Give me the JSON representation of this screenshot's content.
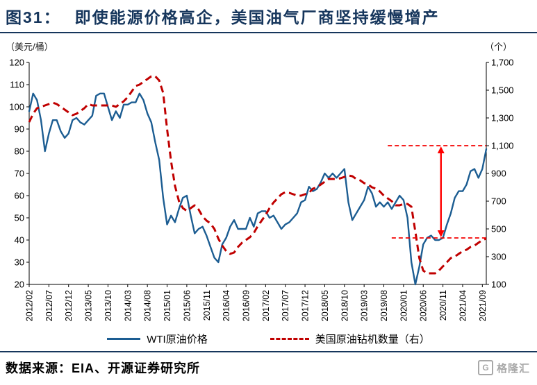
{
  "title": {
    "tag": "图31：",
    "text": "即使能源价格高企，美国油气厂商坚持缓慢增产"
  },
  "axes": {
    "left_unit": "（美元/桶）",
    "right_unit": "（个）"
  },
  "legend": [
    {
      "label": "WTI原油价格",
      "style": "solid",
      "color": "#1C5D92"
    },
    {
      "label": "美国原油钻机数量（右）",
      "style": "dashed",
      "color": "#C00000"
    }
  ],
  "source": {
    "label": "数据来源：EIA、开源证券研究所"
  },
  "watermark": {
    "icon": "G",
    "text": "格隆汇"
  },
  "chart_data": {
    "type": "line",
    "title": "即使能源价格高企，美国油气厂商坚持缓慢增产",
    "x_start": "2012/02",
    "x_frequency": "monthly",
    "x_domain_months": 116,
    "x_tick_step_months": 5,
    "x_tick_labels": [
      "2012/02",
      "2012/07",
      "2012/12",
      "2013/05",
      "2013/10",
      "2014/03",
      "2014/08",
      "2015/01",
      "2015/06",
      "2015/11",
      "2016/04",
      "2016/09",
      "2017/02",
      "2017/07",
      "2017/12",
      "2018/05",
      "2018/10",
      "2019/03",
      "2019/08",
      "2020/01",
      "2020/06",
      "2020/11",
      "2021/04",
      "2021/09"
    ],
    "left_axis": {
      "unit": "美元/桶",
      "min": 20,
      "max": 120,
      "ticks": [
        20,
        30,
        40,
        50,
        60,
        70,
        80,
        90,
        100,
        110,
        120
      ]
    },
    "right_axis": {
      "unit": "个",
      "min": 100,
      "max": 1700,
      "ticks": [
        100,
        300,
        500,
        700,
        900,
        1100,
        1300,
        1500,
        1700
      ],
      "tick_labels": [
        "100",
        "300",
        "500",
        "700",
        "900",
        "1,100",
        "1,300",
        "1,500",
        "1,700"
      ]
    },
    "series": [
      {
        "name": "WTI原油价格",
        "axis": "left",
        "color": "#1C5D92",
        "style": "solid",
        "monthly_values": [
          98,
          106,
          103,
          94,
          80,
          88,
          94,
          94,
          89,
          86,
          88,
          94,
          95,
          93,
          92,
          94,
          96,
          105,
          106,
          106,
          100,
          94,
          98,
          95,
          101,
          101,
          102,
          102,
          106,
          103,
          97,
          93,
          84,
          76,
          59,
          47,
          51,
          48,
          54,
          59,
          60,
          51,
          43,
          45,
          46,
          42,
          37,
          32,
          30,
          38,
          41,
          46,
          49,
          45,
          45,
          45,
          50,
          46,
          52,
          53,
          53,
          50,
          51,
          48,
          45,
          47,
          48,
          50,
          52,
          57,
          58,
          64,
          62,
          63,
          66,
          70,
          68,
          70,
          68,
          70,
          72,
          57,
          49,
          52,
          55,
          58,
          64,
          61,
          55,
          57,
          55,
          57,
          54,
          57,
          60,
          58,
          50,
          30,
          20,
          28,
          38,
          41,
          42,
          40,
          40,
          41,
          47,
          52,
          59,
          62,
          62,
          65,
          71,
          72,
          68,
          72,
          81
        ]
      },
      {
        "name": "美国原油钻机数量（右）",
        "axis": "right",
        "color": "#C00000",
        "style": "dashed",
        "monthly_values": [
          1270,
          1330,
          1370,
          1380,
          1390,
          1400,
          1410,
          1400,
          1380,
          1360,
          1340,
          1320,
          1330,
          1350,
          1370,
          1400,
          1390,
          1390,
          1390,
          1390,
          1390,
          1390,
          1380,
          1400,
          1420,
          1450,
          1490,
          1530,
          1540,
          1560,
          1580,
          1600,
          1600,
          1570,
          1480,
          1220,
          990,
          810,
          700,
          650,
          630,
          650,
          670,
          640,
          590,
          560,
          540,
          500,
          430,
          380,
          340,
          320,
          330,
          370,
          400,
          420,
          440,
          470,
          520,
          560,
          600,
          650,
          690,
          720,
          750,
          765,
          760,
          750,
          740,
          740,
          750,
          760,
          790,
          800,
          820,
          840,
          860,
          860,
          860,
          865,
          875,
          885,
          880,
          860,
          850,
          830,
          820,
          800,
          790,
          770,
          740,
          720,
          700,
          670,
          670,
          680,
          680,
          660,
          480,
          290,
          200,
          180,
          180,
          180,
          200,
          230,
          260,
          290,
          300,
          320,
          340,
          350,
          370,
          380,
          400,
          420,
          430
        ]
      }
    ],
    "annotations": {
      "ref_lines": [
        {
          "axis": "right",
          "value": 1100,
          "from_month": 91,
          "to_month": 116,
          "color": "#F40000"
        },
        {
          "axis": "right",
          "value": 435,
          "from_month": 92,
          "to_month": 116,
          "color": "#F40000"
        }
      ],
      "arrow": {
        "axis": "right",
        "month": 104.5,
        "from_value": 1100,
        "to_value": 435,
        "color": "#FF0000"
      }
    }
  }
}
